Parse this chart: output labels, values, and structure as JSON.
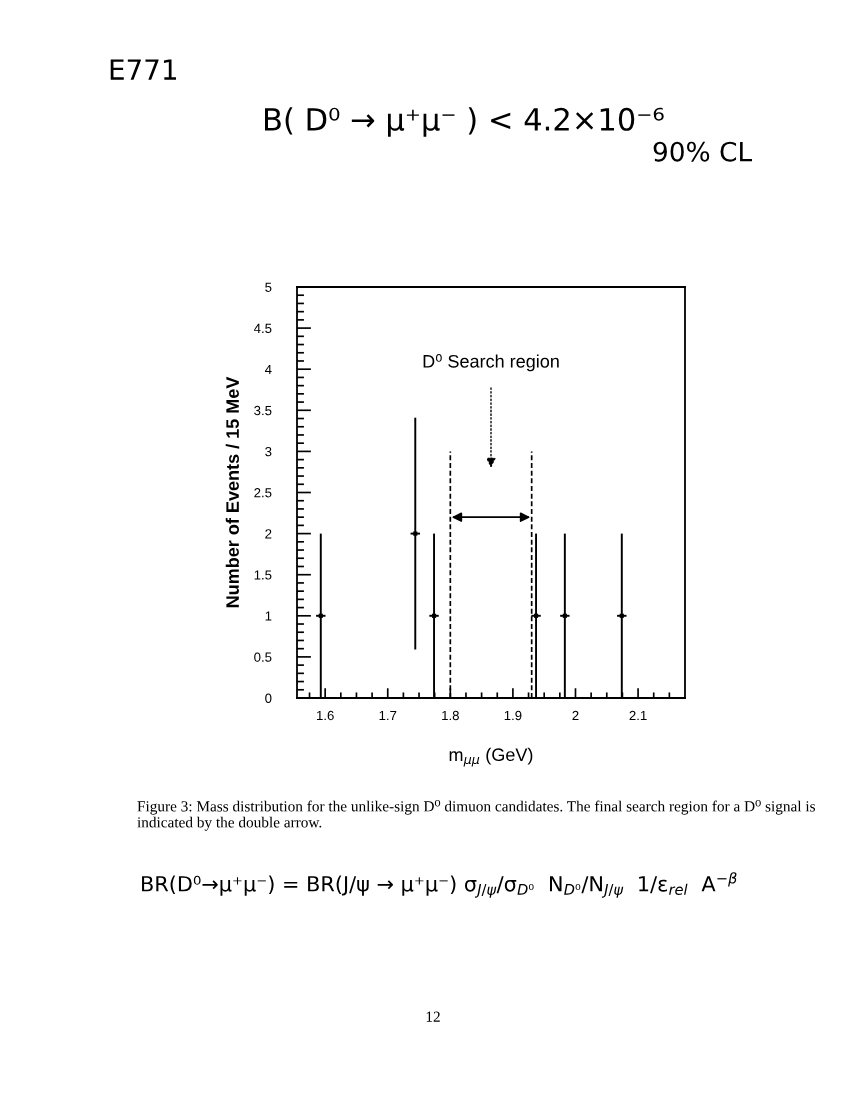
{
  "chart_data": {
    "type": "scatter",
    "xlabel": "m$_{μμ}$ (GeV)",
    "ylabel": "Number of Events / 15 MeV",
    "x": [
      1.593,
      1.744,
      1.774,
      1.937,
      1.983,
      2.074
    ],
    "values": [
      1,
      2,
      1,
      1,
      1,
      1
    ],
    "errors": [
      1,
      1.41,
      1,
      1,
      1,
      1
    ],
    "xerrors": [
      0.0075,
      0.0075,
      0.0075,
      0.0075,
      0.0075,
      0.0075
    ],
    "color": "#000000",
    "marker": "square",
    "xlim": [
      1.555,
      2.175
    ],
    "ylim": [
      0,
      5
    ],
    "xticks": [
      {
        "value": 1.575,
        "label": null
      },
      1.6,
      {
        "value": 1.625,
        "label": null
      },
      {
        "value": 1.65,
        "label": null
      },
      {
        "value": 1.675,
        "label": null
      },
      1.7,
      {
        "value": 1.725,
        "label": null
      },
      {
        "value": 1.75,
        "label": null
      },
      {
        "value": 1.775,
        "label": null
      },
      1.8,
      {
        "value": 1.825,
        "label": null
      },
      {
        "value": 1.85,
        "label": null
      },
      {
        "value": 1.875,
        "label": null
      },
      1.9,
      {
        "value": 1.925,
        "label": null
      },
      {
        "value": 1.95,
        "label": null
      },
      {
        "value": 1.975,
        "label": null
      },
      2,
      {
        "value": 2.025,
        "label": null
      },
      {
        "value": 2.05,
        "label": null
      },
      {
        "value": 2.075,
        "label": null
      },
      2.1,
      {
        "value": 2.125,
        "label": null
      },
      {
        "value": 2.15,
        "label": null
      }
    ],
    "yticks": [
      0,
      {
        "value": 0.1,
        "label": null
      },
      {
        "value": 0.2,
        "label": null
      },
      {
        "value": 0.3,
        "label": null
      },
      {
        "value": 0.4,
        "label": null
      },
      0.5,
      {
        "value": 0.6,
        "label": null
      },
      {
        "value": 0.7,
        "label": null
      },
      {
        "value": 0.8,
        "label": null
      },
      {
        "value": 0.9,
        "label": null
      },
      1,
      {
        "value": 1.1,
        "label": null
      },
      {
        "value": 1.2,
        "label": null
      },
      {
        "value": 1.3,
        "label": null
      },
      {
        "value": 1.4,
        "label": null
      },
      1.5,
      {
        "value": 1.6,
        "label": null
      },
      {
        "value": 1.7,
        "label": null
      },
      {
        "value": 1.8,
        "label": null
      },
      {
        "value": 1.9,
        "label": null
      },
      2,
      {
        "value": 2.1,
        "label": null
      },
      {
        "value": 2.2,
        "label": null
      },
      {
        "value": 2.3,
        "label": null
      },
      {
        "value": 2.4,
        "label": null
      },
      2.5,
      {
        "value": 2.6,
        "label": null
      },
      {
        "value": 2.7,
        "label": null
      },
      {
        "value": 2.8,
        "label": null
      },
      {
        "value": 2.9,
        "label": null
      },
      3,
      {
        "value": 3.1,
        "label": null
      },
      {
        "value": 3.2,
        "label": null
      },
      {
        "value": 3.3,
        "label": null
      },
      {
        "value": 3.4,
        "label": null
      },
      3.5,
      {
        "value": 3.6,
        "label": null
      },
      {
        "value": 3.7,
        "label": null
      },
      {
        "value": 3.8,
        "label": null
      },
      {
        "value": 3.9,
        "label": null
      },
      4,
      {
        "value": 4.1,
        "label": null
      },
      {
        "value": 4.2,
        "label": null
      },
      {
        "value": 4.3,
        "label": null
      },
      {
        "value": 4.4,
        "label": null
      },
      4.5,
      {
        "value": 4.6,
        "label": null
      },
      {
        "value": 4.7,
        "label": null
      },
      {
        "value": 4.8,
        "label": null
      },
      {
        "value": 4.9,
        "label": null
      },
      5
    ],
    "ref_lines": [
      {
        "axis": "x",
        "value": 1.8,
        "color": "#000000",
        "line_style": "dashed"
      },
      {
        "axis": "x",
        "value": 1.93,
        "color": "#000000",
        "line_style": "dashed"
      }
    ],
    "annotations": [
      "E771",
      "B( D⁰ → μ⁺μ⁻ ) < 4.2×10⁻⁶",
      "90% CL",
      "D⁰ Search region",
      "Figure 3: Mass distribution for the unlike-sign D⁰ dimuon candidates. The final search region for a D⁰ signal is indicated by the double arrow.",
      "BR(D⁰→μ⁺μ⁻) = BR(J/ψ → μ⁺μ⁻) σ$_{J/ψ}$/σ$_{D⁰}$  N$_{D⁰}$/N$_{J/ψ}$  1/ε$_{rel}$  A$^{−β}$",
      "12"
    ]
  }
}
